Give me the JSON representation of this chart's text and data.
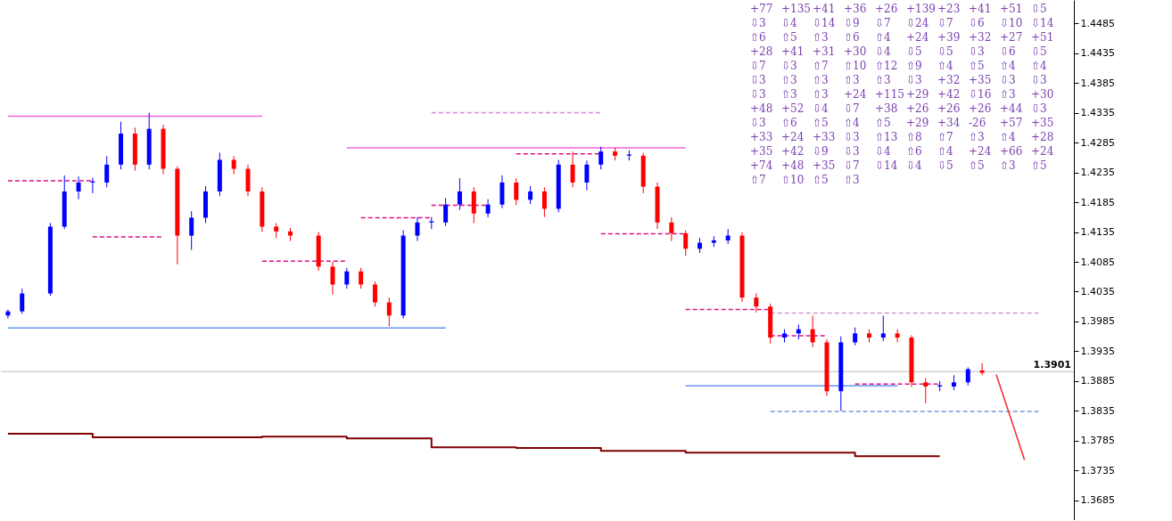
{
  "chart_data": {
    "type": "candlestick",
    "categories": [
      null,
      null,
      null,
      null,
      null,
      null,
      null,
      null,
      null,
      null,
      null,
      null,
      null,
      null,
      null,
      null,
      null,
      null,
      null,
      null,
      null,
      null,
      null,
      null,
      null,
      null,
      null,
      null,
      null,
      null,
      null,
      null,
      null,
      null,
      null,
      null,
      null,
      null,
      null,
      null,
      null,
      null,
      null,
      null,
      null,
      null,
      null,
      null,
      null,
      null,
      null,
      null,
      null,
      null,
      null,
      null,
      null,
      null,
      null,
      null,
      null,
      null,
      null,
      null,
      null,
      null,
      null,
      null,
      null,
      null,
      null,
      null,
      null,
      null,
      null,
      null
    ],
    "ylim": [
      1.3652,
      1.4524
    ],
    "yticks": [
      1.3685,
      1.3735,
      1.3785,
      1.3835,
      1.3885,
      1.3935,
      1.3985,
      1.4035,
      1.4085,
      1.4135,
      1.4185,
      1.4235,
      1.4285,
      1.4335,
      1.4385,
      1.4435,
      1.4485
    ],
    "tick_labels": "y",
    "ohlc": [
      [
        1.3995,
        1.4005,
        1.399,
        1.4002
      ],
      [
        1.4002,
        1.404,
        1.3998,
        1.4032
      ],
      null,
      [
        1.4032,
        1.415,
        1.4028,
        1.4144
      ],
      [
        1.4144,
        1.423,
        1.414,
        1.4203
      ],
      [
        1.4203,
        1.4228,
        1.419,
        1.4218
      ],
      [
        1.4218,
        1.4226,
        1.42,
        1.422
      ],
      [
        1.4218,
        1.4262,
        1.421,
        1.4248
      ],
      [
        1.4248,
        1.432,
        1.424,
        1.43
      ],
      [
        1.43,
        1.431,
        1.4238,
        1.4248
      ],
      [
        1.4248,
        1.4335,
        1.424,
        1.4308
      ],
      [
        1.4308,
        1.4315,
        1.4232,
        1.4241
      ],
      [
        1.4241,
        1.4245,
        1.4081,
        1.4129
      ],
      [
        1.4129,
        1.417,
        1.4105,
        1.4159
      ],
      [
        1.4159,
        1.4212,
        1.415,
        1.4203
      ],
      [
        1.4203,
        1.4268,
        1.4195,
        1.4256
      ],
      [
        1.4256,
        1.4262,
        1.4232,
        1.4241
      ],
      [
        1.4241,
        1.4248,
        1.4195,
        1.4203
      ],
      [
        1.4203,
        1.421,
        1.4135,
        1.4144
      ],
      [
        1.4144,
        1.415,
        1.4125,
        1.4136
      ],
      [
        1.4136,
        1.4142,
        1.412,
        1.4129
      ],
      null,
      [
        1.4129,
        1.4135,
        1.407,
        1.4077
      ],
      [
        1.4077,
        1.4085,
        1.403,
        1.4047
      ],
      [
        1.4047,
        1.4075,
        1.404,
        1.4069
      ],
      [
        1.4069,
        1.4075,
        1.404,
        1.4047
      ],
      [
        1.4047,
        1.4052,
        1.401,
        1.4017
      ],
      [
        1.4017,
        1.4025,
        1.3977,
        1.3995
      ],
      [
        1.3995,
        1.4138,
        1.399,
        1.4129
      ],
      [
        1.4129,
        1.416,
        1.412,
        1.4151
      ],
      [
        1.4151,
        1.416,
        1.414,
        1.4153
      ],
      [
        1.4151,
        1.4192,
        1.4145,
        1.4181
      ],
      [
        1.4181,
        1.4225,
        1.4172,
        1.4203
      ],
      [
        1.4203,
        1.421,
        1.415,
        1.4166
      ],
      [
        1.4166,
        1.419,
        1.416,
        1.4181
      ],
      [
        1.4181,
        1.423,
        1.4175,
        1.4218
      ],
      [
        1.4218,
        1.4225,
        1.418,
        1.4189
      ],
      [
        1.4189,
        1.4212,
        1.4182,
        1.4203
      ],
      [
        1.4203,
        1.421,
        1.416,
        1.4174
      ],
      [
        1.4174,
        1.4256,
        1.4168,
        1.4248
      ],
      [
        1.4248,
        1.427,
        1.421,
        1.4218
      ],
      [
        1.4218,
        1.4255,
        1.4205,
        1.4248
      ],
      [
        1.4248,
        1.4278,
        1.424,
        1.427
      ],
      [
        1.427,
        1.4276,
        1.4255,
        1.4263
      ],
      [
        1.4263,
        1.4272,
        1.4255,
        1.4265
      ],
      [
        1.4263,
        1.4268,
        1.42,
        1.4211
      ],
      [
        1.4211,
        1.4218,
        1.414,
        1.4151
      ],
      [
        1.4151,
        1.416,
        1.412,
        1.4133
      ],
      [
        1.4133,
        1.4138,
        1.4095,
        1.4107
      ],
      [
        1.4107,
        1.4125,
        1.41,
        1.4117
      ],
      [
        1.4117,
        1.4128,
        1.411,
        1.4121
      ],
      [
        1.4121,
        1.414,
        1.4115,
        1.4129
      ],
      [
        1.4129,
        1.4135,
        1.4018,
        1.4025
      ],
      [
        1.4025,
        1.4032,
        1.4,
        1.401
      ],
      [
        1.401,
        1.4015,
        1.3948,
        1.3958
      ],
      [
        1.3958,
        1.3972,
        1.395,
        1.3965
      ],
      [
        1.3965,
        1.398,
        1.3955,
        1.3972
      ],
      [
        1.3972,
        1.3995,
        1.3942,
        1.395
      ],
      [
        1.395,
        1.3955,
        1.386,
        1.3868
      ],
      [
        1.3868,
        1.396,
        1.3835,
        1.395
      ],
      [
        1.395,
        1.3975,
        1.3945,
        1.3965
      ],
      [
        1.3965,
        1.3972,
        1.395,
        1.3958
      ],
      [
        1.3958,
        1.3995,
        1.3952,
        1.3965
      ],
      [
        1.3965,
        1.3972,
        1.395,
        1.3958
      ],
      [
        1.3958,
        1.3962,
        1.3875,
        1.3883
      ],
      [
        1.3883,
        1.389,
        1.3848,
        1.3876
      ],
      [
        1.3876,
        1.3885,
        1.3868,
        1.3878
      ],
      [
        1.3876,
        1.3895,
        1.387,
        1.3883
      ],
      [
        1.3883,
        1.3908,
        1.3878,
        1.3905
      ],
      [
        1.3903,
        1.3915,
        1.3895,
        1.3899
      ],
      null,
      null,
      null,
      null,
      null,
      null
    ],
    "colors": [
      "#0000ff",
      "#0000ff",
      null,
      "#0000ff",
      "#0000ff",
      "#0000ff",
      "#0000ff",
      "#0000ff",
      "#0000ff",
      "#ff0000",
      "#0000ff",
      "#ff0000",
      "#ff0000",
      "#0000ff",
      "#0000ff",
      "#0000ff",
      "#ff0000",
      "#ff0000",
      "#ff0000",
      "#ff0000",
      "#ff0000",
      null,
      "#ff0000",
      "#ff0000",
      "#0000ff",
      "#ff0000",
      "#ff0000",
      "#ff0000",
      "#0000ff",
      "#0000ff",
      "#0000ff",
      "#0000ff",
      "#0000ff",
      "#ff0000",
      "#0000ff",
      "#0000ff",
      "#ff0000",
      "#0000ff",
      "#ff0000",
      "#0000ff",
      "#ff0000",
      "#0000ff",
      "#0000ff",
      "#ff0000",
      "#0000ff",
      "#ff0000",
      "#ff0000",
      "#ff0000",
      "#ff0000",
      "#0000ff",
      "#0000ff",
      "#0000ff",
      "#ff0000",
      "#ff0000",
      "#ff0000",
      "#0000ff",
      "#0000ff",
      "#ff0000",
      "#ff0000",
      "#0000ff",
      "#0000ff",
      "#ff0000",
      "#0000ff",
      "#ff0000",
      "#ff0000",
      "#ff0000",
      "#0000ff",
      "#0000ff",
      "#0000ff",
      "#ff0000",
      null,
      null,
      null,
      null,
      null,
      null
    ],
    "series": [
      {
        "type": "line",
        "color": "#ee66dd",
        "values": [
          1.4329,
          1.4329,
          1.4329,
          1.4329,
          1.4329,
          1.4329,
          1.4329,
          1.4329,
          1.4329,
          1.4329,
          1.4329,
          1.4329,
          1.4329,
          1.4329,
          1.4329,
          1.4329,
          1.4329,
          1.4329,
          1.4329,
          null,
          null,
          null,
          null,
          null,
          null,
          null,
          null,
          null,
          null,
          null,
          null,
          null,
          null,
          null,
          null,
          null,
          null,
          null,
          null,
          null,
          null,
          null,
          null,
          null,
          null,
          null,
          null,
          null,
          null,
          null,
          null,
          null,
          null,
          null,
          null,
          null,
          null,
          null,
          null,
          null,
          null,
          null,
          null,
          null,
          null,
          null,
          null,
          null,
          null,
          null,
          null,
          null,
          null,
          null,
          null,
          null
        ]
      },
      {
        "type": "line",
        "color": "#ee66dd",
        "values": [
          null,
          null,
          null,
          null,
          null,
          null,
          null,
          null,
          null,
          null,
          null,
          null,
          null,
          null,
          null,
          null,
          null,
          null,
          null,
          null,
          null,
          null,
          null,
          null,
          1.4276,
          1.4276,
          1.4276,
          1.4276,
          1.4276,
          1.4276,
          1.4276,
          1.4276,
          1.4276,
          1.4276,
          1.4276,
          1.4276,
          1.4276,
          1.4276,
          1.4276,
          1.4276,
          1.4276,
          1.4276,
          1.4276,
          1.4276,
          1.4276,
          1.4276,
          1.4276,
          1.4276,
          1.4276,
          null,
          null,
          null,
          null,
          null,
          null,
          null,
          null,
          null,
          null,
          null,
          null,
          null,
          null,
          null,
          null,
          null,
          null,
          null,
          null,
          null,
          null,
          null,
          null,
          null,
          null,
          null
        ]
      },
      {
        "type": "line",
        "color": "#dd88dd",
        "line_style": "dashed",
        "values": [
          null,
          null,
          null,
          null,
          null,
          null,
          null,
          null,
          null,
          null,
          null,
          null,
          null,
          null,
          null,
          null,
          null,
          null,
          null,
          null,
          null,
          null,
          null,
          null,
          null,
          null,
          null,
          null,
          null,
          null,
          1.4335,
          1.4335,
          1.4335,
          1.4335,
          1.4335,
          1.4335,
          1.4335,
          1.4335,
          1.4335,
          1.4335,
          1.4335,
          1.4335,
          1.4335,
          null,
          null,
          null,
          null,
          null,
          null,
          null,
          null,
          null,
          null,
          null,
          null,
          null,
          null,
          null,
          null,
          null,
          null,
          null,
          null,
          null,
          null,
          null,
          null,
          null,
          null,
          null,
          null,
          null,
          null,
          null,
          null,
          null
        ]
      },
      {
        "type": "line",
        "color": "#dd1188",
        "line_style": "dashed",
        "values": [
          1.4221,
          1.4221,
          1.4221,
          1.4221,
          1.4221,
          1.4221,
          1.4221,
          null,
          null,
          null,
          null,
          null,
          null,
          null,
          null,
          null,
          null,
          null,
          null,
          null,
          null,
          null,
          null,
          null,
          null,
          null,
          null,
          null,
          null,
          null,
          null,
          null,
          null,
          null,
          null,
          null,
          null,
          null,
          null,
          null,
          null,
          null,
          null,
          null,
          null,
          null,
          null,
          null,
          null,
          null,
          null,
          null,
          null,
          null,
          null,
          null,
          null,
          null,
          null,
          null,
          null,
          null,
          null,
          null,
          null,
          null,
          null,
          null,
          null,
          null,
          null,
          null,
          null,
          null,
          null,
          null
        ]
      },
      {
        "type": "line",
        "color": "#dd1188",
        "line_style": "dashed",
        "values": [
          null,
          null,
          null,
          null,
          null,
          null,
          1.4127,
          1.4127,
          1.4127,
          1.4127,
          1.4127,
          1.4127,
          null,
          null,
          null,
          null,
          null,
          null,
          null,
          null,
          null,
          null,
          null,
          null,
          null,
          null,
          null,
          null,
          null,
          null,
          null,
          null,
          null,
          null,
          null,
          null,
          null,
          null,
          null,
          null,
          null,
          null,
          null,
          null,
          null,
          null,
          null,
          null,
          null,
          null,
          null,
          null,
          null,
          null,
          null,
          null,
          null,
          null,
          null,
          null,
          null,
          null,
          null,
          null,
          null,
          null,
          null,
          null,
          null,
          null,
          null,
          null,
          null,
          null,
          null,
          null
        ]
      },
      {
        "type": "line",
        "color": "#dd1188",
        "line_style": "dashed",
        "values": [
          null,
          null,
          null,
          null,
          null,
          null,
          null,
          null,
          null,
          null,
          null,
          null,
          null,
          null,
          null,
          null,
          null,
          null,
          1.4086,
          1.4086,
          1.4086,
          1.4086,
          1.4086,
          1.4086,
          1.4086,
          null,
          null,
          null,
          null,
          null,
          null,
          null,
          null,
          null,
          null,
          null,
          null,
          null,
          null,
          null,
          null,
          null,
          null,
          null,
          null,
          null,
          null,
          null,
          null,
          null,
          null,
          null,
          null,
          null,
          null,
          null,
          null,
          null,
          null,
          null,
          null,
          null,
          null,
          null,
          null,
          null,
          null,
          null,
          null,
          null,
          null,
          null,
          null,
          null,
          null,
          null
        ]
      },
      {
        "type": "line",
        "color": "#dd1188",
        "line_style": "dashed",
        "values": [
          null,
          null,
          null,
          null,
          null,
          null,
          null,
          null,
          null,
          null,
          null,
          null,
          null,
          null,
          null,
          null,
          null,
          null,
          null,
          null,
          null,
          null,
          null,
          null,
          null,
          1.4159,
          1.4159,
          1.4159,
          1.4159,
          1.4159,
          1.4159,
          null,
          null,
          null,
          null,
          null,
          null,
          null,
          null,
          null,
          null,
          null,
          null,
          null,
          null,
          null,
          null,
          null,
          null,
          null,
          null,
          null,
          null,
          null,
          null,
          null,
          null,
          null,
          null,
          null,
          null,
          null,
          null,
          null,
          null,
          null,
          null,
          null,
          null,
          null,
          null,
          null,
          null,
          null,
          null,
          null
        ]
      },
      {
        "type": "line",
        "color": "#dd1188",
        "line_style": "dashed",
        "values": [
          null,
          null,
          null,
          null,
          null,
          null,
          null,
          null,
          null,
          null,
          null,
          null,
          null,
          null,
          null,
          null,
          null,
          null,
          null,
          null,
          null,
          null,
          null,
          null,
          null,
          null,
          null,
          null,
          null,
          null,
          1.418,
          1.418,
          1.418,
          1.418,
          1.418,
          null,
          null,
          null,
          null,
          null,
          null,
          null,
          null,
          null,
          null,
          null,
          null,
          null,
          null,
          null,
          null,
          null,
          null,
          null,
          null,
          null,
          null,
          null,
          null,
          null,
          null,
          null,
          null,
          null,
          null,
          null,
          null,
          null,
          null,
          null,
          null,
          null,
          null,
          null,
          null,
          null
        ]
      },
      {
        "type": "line",
        "color": "#dd1188",
        "line_style": "dashed",
        "values": [
          null,
          null,
          null,
          null,
          null,
          null,
          null,
          null,
          null,
          null,
          null,
          null,
          null,
          null,
          null,
          null,
          null,
          null,
          null,
          null,
          null,
          null,
          null,
          null,
          null,
          null,
          null,
          null,
          null,
          null,
          null,
          null,
          null,
          null,
          null,
          null,
          1.4266,
          1.4266,
          1.4266,
          1.4266,
          1.4266,
          1.4266,
          1.4266,
          null,
          null,
          null,
          null,
          null,
          null,
          null,
          null,
          null,
          null,
          null,
          null,
          null,
          null,
          null,
          null,
          null,
          null,
          null,
          null,
          null,
          null,
          null,
          null,
          null,
          null,
          null,
          null,
          null,
          null,
          null,
          null,
          null
        ]
      },
      {
        "type": "line",
        "color": "#dd1188",
        "line_style": "dashed",
        "values": [
          null,
          null,
          null,
          null,
          null,
          null,
          null,
          null,
          null,
          null,
          null,
          null,
          null,
          null,
          null,
          null,
          null,
          null,
          null,
          null,
          null,
          null,
          null,
          null,
          null,
          null,
          null,
          null,
          null,
          null,
          null,
          null,
          null,
          null,
          null,
          null,
          null,
          null,
          null,
          null,
          null,
          null,
          1.4132,
          1.4132,
          1.4132,
          1.4132,
          1.4132,
          1.4132,
          1.4132,
          null,
          null,
          null,
          null,
          null,
          null,
          null,
          null,
          null,
          null,
          null,
          null,
          null,
          null,
          null,
          null,
          null,
          null,
          null,
          null,
          null,
          null,
          null,
          null,
          null,
          null,
          null
        ]
      },
      {
        "type": "line",
        "color": "#dd1188",
        "line_style": "dashed",
        "values": [
          null,
          null,
          null,
          null,
          null,
          null,
          null,
          null,
          null,
          null,
          null,
          null,
          null,
          null,
          null,
          null,
          null,
          null,
          null,
          null,
          null,
          null,
          null,
          null,
          null,
          null,
          null,
          null,
          null,
          null,
          null,
          null,
          null,
          null,
          null,
          null,
          null,
          null,
          null,
          null,
          null,
          null,
          null,
          null,
          null,
          null,
          null,
          null,
          1.4005,
          1.4005,
          1.4005,
          1.4005,
          1.4005,
          1.4005,
          1.4005,
          null,
          null,
          null,
          null,
          null,
          null,
          null,
          null,
          null,
          null,
          null,
          null,
          null,
          null,
          null,
          null,
          null,
          null,
          null,
          null,
          null
        ]
      },
      {
        "type": "line",
        "color": "#dd1188",
        "line_style": "dashed",
        "values": [
          null,
          null,
          null,
          null,
          null,
          null,
          null,
          null,
          null,
          null,
          null,
          null,
          null,
          null,
          null,
          null,
          null,
          null,
          null,
          null,
          null,
          null,
          null,
          null,
          null,
          null,
          null,
          null,
          null,
          null,
          null,
          null,
          null,
          null,
          null,
          null,
          null,
          null,
          null,
          null,
          null,
          null,
          null,
          null,
          null,
          null,
          null,
          null,
          null,
          null,
          null,
          null,
          null,
          null,
          1.3961,
          1.3961,
          1.3961,
          1.3961,
          1.3961,
          null,
          null,
          null,
          null,
          null,
          null,
          null,
          null,
          null,
          null,
          null,
          null,
          null,
          null,
          null,
          null,
          null
        ]
      },
      {
        "type": "line",
        "color": "#dd1188",
        "line_style": "dashed",
        "values": [
          null,
          null,
          null,
          null,
          null,
          null,
          null,
          null,
          null,
          null,
          null,
          null,
          null,
          null,
          null,
          null,
          null,
          null,
          null,
          null,
          null,
          null,
          null,
          null,
          null,
          null,
          null,
          null,
          null,
          null,
          null,
          null,
          null,
          null,
          null,
          null,
          null,
          null,
          null,
          null,
          null,
          null,
          null,
          null,
          null,
          null,
          null,
          null,
          null,
          null,
          null,
          null,
          null,
          null,
          null,
          null,
          null,
          null,
          null,
          null,
          1.388,
          1.388,
          1.388,
          1.388,
          1.388,
          1.388,
          1.388,
          null,
          null,
          null,
          null,
          null,
          null,
          null,
          null,
          null
        ]
      },
      {
        "type": "line",
        "color": "#6495ed",
        "values": [
          1.3974,
          1.3974,
          1.3974,
          1.3974,
          1.3974,
          1.3974,
          1.3974,
          1.3974,
          1.3974,
          1.3974,
          1.3974,
          1.3974,
          1.3974,
          1.3974,
          1.3974,
          1.3974,
          1.3974,
          1.3974,
          1.3974,
          1.3974,
          1.3974,
          1.3974,
          1.3974,
          1.3974,
          1.3974,
          1.3974,
          1.3974,
          1.3974,
          1.3974,
          1.3974,
          1.3974,
          1.3974,
          null,
          null,
          null,
          null,
          null,
          null,
          null,
          null,
          null,
          null,
          null,
          null,
          null,
          null,
          null,
          null,
          null,
          null,
          null,
          null,
          null,
          null,
          null,
          null,
          null,
          null,
          null,
          null,
          null,
          null,
          null,
          null,
          null,
          null,
          null,
          null,
          null,
          null,
          null,
          null,
          null,
          null,
          null,
          null
        ]
      },
      {
        "type": "line",
        "color": "#6495ed",
        "values": [
          null,
          null,
          null,
          null,
          null,
          null,
          null,
          null,
          null,
          null,
          null,
          null,
          null,
          null,
          null,
          null,
          null,
          null,
          null,
          null,
          null,
          null,
          null,
          null,
          null,
          null,
          null,
          null,
          null,
          null,
          null,
          null,
          null,
          null,
          null,
          null,
          null,
          null,
          null,
          null,
          null,
          null,
          null,
          null,
          null,
          null,
          null,
          null,
          1.3877,
          1.3877,
          1.3877,
          1.3877,
          1.3877,
          1.3877,
          1.3877,
          1.3877,
          1.3877,
          1.3877,
          1.3877,
          1.3877,
          1.3877,
          1.3877,
          1.3877,
          1.3877,
          null,
          null,
          null,
          null,
          null,
          null,
          null,
          null,
          null,
          null,
          null,
          null
        ]
      },
      {
        "type": "line",
        "color": "#cc99cc",
        "line_style": "dashed",
        "values": [
          null,
          null,
          null,
          null,
          null,
          null,
          null,
          null,
          null,
          null,
          null,
          null,
          null,
          null,
          null,
          null,
          null,
          null,
          null,
          null,
          null,
          null,
          null,
          null,
          null,
          null,
          null,
          null,
          null,
          null,
          null,
          null,
          null,
          null,
          null,
          null,
          null,
          null,
          null,
          null,
          null,
          null,
          null,
          null,
          null,
          null,
          null,
          null,
          null,
          null,
          null,
          null,
          null,
          null,
          1.3999,
          1.3999,
          1.3999,
          1.3999,
          1.3999,
          1.3999,
          1.3999,
          1.3999,
          1.3999,
          1.3999,
          1.3999,
          1.3999,
          1.3999,
          1.3999,
          1.3999,
          1.3999,
          1.3999,
          1.3999,
          1.3999,
          1.3999,
          null,
          null
        ]
      },
      {
        "type": "line",
        "color": "#7799dd",
        "line_style": "dashed",
        "values": [
          null,
          null,
          null,
          null,
          null,
          null,
          null,
          null,
          null,
          null,
          null,
          null,
          null,
          null,
          null,
          null,
          null,
          null,
          null,
          null,
          null,
          null,
          null,
          null,
          null,
          null,
          null,
          null,
          null,
          null,
          null,
          null,
          null,
          null,
          null,
          null,
          null,
          null,
          null,
          null,
          null,
          null,
          null,
          null,
          null,
          null,
          null,
          null,
          null,
          null,
          null,
          null,
          null,
          null,
          1.3834,
          1.3834,
          1.3834,
          1.3834,
          1.3834,
          1.3834,
          1.3834,
          1.3834,
          1.3834,
          1.3834,
          1.3834,
          1.3834,
          1.3834,
          1.3834,
          1.3834,
          1.3834,
          1.3834,
          1.3834,
          1.3834,
          1.3834,
          null,
          null
        ]
      },
      {
        "type": "step",
        "color": "#800000",
        "values": [
          1.3797,
          1.3797,
          1.3797,
          1.3797,
          1.3797,
          1.3797,
          1.3791,
          1.3791,
          1.3791,
          1.3791,
          1.3791,
          1.3791,
          1.3791,
          1.3791,
          1.3791,
          1.3791,
          1.3791,
          1.3791,
          1.3792,
          1.3792,
          1.3792,
          1.3792,
          1.3792,
          1.3792,
          1.3789,
          1.3789,
          1.3789,
          1.3789,
          1.3789,
          1.3789,
          1.3774,
          1.3774,
          1.3774,
          1.3774,
          1.3774,
          1.3774,
          1.3773,
          1.3773,
          1.3773,
          1.3773,
          1.3773,
          1.3773,
          1.3768,
          1.3768,
          1.3768,
          1.3768,
          1.3768,
          1.3768,
          1.3765,
          1.3765,
          1.3765,
          1.3765,
          1.3765,
          1.3765,
          1.3765,
          1.3765,
          1.3765,
          1.3765,
          1.3765,
          1.3765,
          1.3759,
          1.3759,
          1.3759,
          1.3759,
          1.3759,
          1.3759,
          1.3759,
          null,
          null,
          null,
          null,
          null,
          null,
          null,
          null,
          null
        ]
      },
      {
        "type": "line",
        "color": "#ff2020",
        "values": [
          null,
          null,
          null,
          null,
          null,
          null,
          null,
          null,
          null,
          null,
          null,
          null,
          null,
          null,
          null,
          null,
          null,
          null,
          null,
          null,
          null,
          null,
          null,
          null,
          null,
          null,
          null,
          null,
          null,
          null,
          null,
          null,
          null,
          null,
          null,
          null,
          null,
          null,
          null,
          null,
          null,
          null,
          null,
          null,
          null,
          null,
          null,
          null,
          null,
          null,
          null,
          null,
          null,
          null,
          null,
          null,
          null,
          null,
          null,
          null,
          null,
          null,
          null,
          null,
          null,
          null,
          null,
          null,
          null,
          null,
          1.3896,
          1.3825,
          1.3753,
          null,
          null,
          null
        ]
      }
    ],
    "ref_lines": [
      {
        "axis": "y",
        "value": 1.3901,
        "label": "1.3901",
        "color": "#c0c0c0"
      }
    ],
    "annotations": [
      "+77",
      "+135",
      "+41",
      "+36",
      "+26",
      "+139",
      "+23",
      "+41",
      "+51",
      "⇩5",
      "⇩3",
      "⇩4",
      "⇩14",
      "⇩9",
      "⇩7",
      "⇩24",
      "⇩7",
      "⇩6",
      "⇩10",
      "⇩14",
      "⇧6",
      "⇧5",
      "⇧3",
      "⇧6",
      "⇧4",
      "+24",
      "+39",
      "+32",
      "+27",
      "+51",
      "+28",
      "+41",
      "+31",
      "+30",
      "⇩4",
      "⇩5",
      "⇩5",
      "⇩3",
      "⇩6",
      "⇩5",
      "⇩7",
      "⇩3",
      "⇧7",
      "⇧10",
      "⇧12",
      "⇧9",
      "⇧4",
      "⇧5",
      "⇧4",
      "⇧4",
      "⇩3",
      "⇧3",
      "⇧3",
      "⇧3",
      "⇧3",
      "⇩3",
      "+32",
      "+35",
      "⇩3",
      "⇩3",
      "⇩3",
      "⇧3",
      "⇧3",
      "+24",
      "+115",
      "+29",
      "+42",
      "⇩16",
      "⇧3",
      "+30",
      "+48",
      "+52",
      "⇩4",
      "⇩7",
      "+38",
      "+26",
      "+26",
      "+26",
      "+44",
      "⇩3",
      "⇩3",
      "⇧6",
      "⇧5",
      "⇧4",
      "⇧5",
      "+29",
      "+34",
      "-26",
      "+57",
      "+35",
      "+33",
      "+24",
      "+33",
      "⇩3",
      "⇧13",
      "⇧8",
      "⇧7",
      "⇧3",
      "⇧4",
      "+28",
      "+35",
      "+42",
      "⇩9",
      "⇩3",
      "⇩4",
      "⇧6",
      "⇧4",
      "+24",
      "+66",
      "+24",
      "+74",
      "+48",
      "+35",
      "⇩7",
      "⇩14",
      "⇩4",
      "⇩5",
      "⇧5",
      "⇧3",
      "⇧5",
      "⇧7",
      "⇧10",
      "⇧5",
      "⇧3"
    ]
  }
}
